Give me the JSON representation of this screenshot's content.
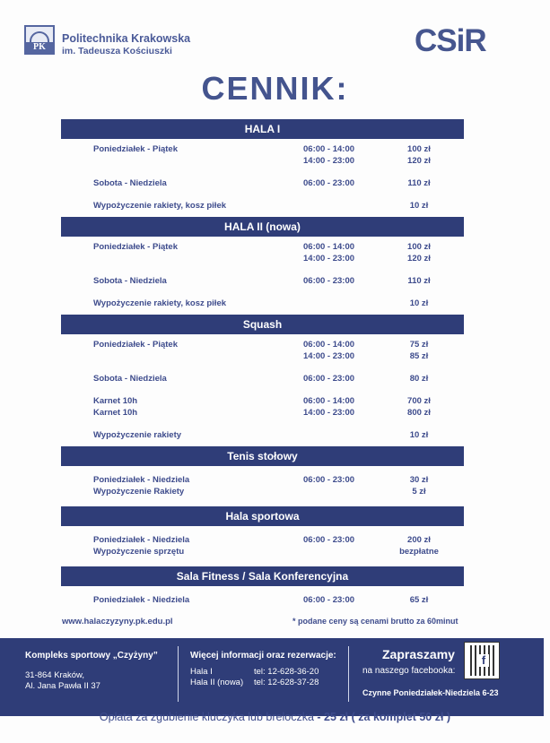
{
  "header": {
    "university_line1": "Politechnika Krakowska",
    "university_line2": "im. Tadeusza Kościuszki",
    "pk_logo_text": "PK",
    "csir_logo_text": "CSiR",
    "title": "CENNIK:"
  },
  "sections": [
    {
      "name": "HALA I",
      "groups": [
        [
          [
            "Poniedziałek - Piątek",
            "06:00 - 14:00",
            "100 zł"
          ],
          [
            "",
            "14:00 - 23:00",
            "120 zł"
          ]
        ],
        [
          [
            "Sobota - Niedziela",
            "06:00 - 23:00",
            "110 zł"
          ]
        ],
        [
          [
            "Wypożyczenie rakiety, kosz  piłek",
            "",
            "10 zł"
          ]
        ]
      ]
    },
    {
      "name": "HALA II (nowa)",
      "groups": [
        [
          [
            "Poniedziałek - Piątek",
            "06:00 - 14:00",
            "100 zł"
          ],
          [
            "",
            "14:00 - 23:00",
            "120 zł"
          ]
        ],
        [
          [
            "Sobota - Niedziela",
            "06:00 - 23:00",
            "110 zł"
          ]
        ],
        [
          [
            "Wypożyczenie rakiety, kosz  piłek",
            "",
            "10 zł"
          ]
        ]
      ]
    },
    {
      "name": "Squash",
      "groups": [
        [
          [
            "Poniedziałek - Piątek",
            "06:00 - 14:00",
            "75 zł"
          ],
          [
            "",
            "14:00 - 23:00",
            "85 zł"
          ]
        ],
        [
          [
            "Sobota - Niedziela",
            "06:00 - 23:00",
            "80 zł"
          ]
        ],
        [
          [
            "Karnet 10h",
            "06:00 - 14:00",
            "700 zł"
          ],
          [
            "Karnet 10h",
            "14:00 - 23:00",
            "800 zł"
          ]
        ],
        [
          [
            "Wypożyczenie rakiety",
            "",
            "10 zł"
          ]
        ]
      ]
    },
    {
      "name": "Tenis stołowy",
      "groups": [
        [
          [
            "Poniedziałek - Niedziela",
            "06:00 - 23:00",
            "30 zł"
          ],
          [
            "Wypożyczenie Rakiety",
            "",
            "5 zł"
          ]
        ]
      ]
    },
    {
      "name": "Hala sportowa",
      "groups": [
        [
          [
            "Poniedziałek - Niedziela",
            "06:00 - 23:00",
            "200 zł"
          ],
          [
            "Wypożyczenie sprzętu",
            "",
            "bezpłatne"
          ]
        ]
      ]
    },
    {
      "name": "Sala Fitness / Sala Konferencyjna",
      "groups": [
        [
          [
            "Poniedziałek - Niedziela",
            "06:00 - 23:00",
            "65 zł"
          ]
        ]
      ]
    }
  ],
  "footer": {
    "url": "www.halaczyzyny.pk.edu.pl",
    "note": "* podane ceny są cenami brutto za 60minut",
    "complex_title": "Kompleks sportowy „Czyżyny”",
    "address1": "31-864 Kraków,",
    "address2": "Al. Jana Pawła II 37",
    "info_title": "Więcej informacji oraz rezerwacje:",
    "hall1": "Hala I",
    "hall1_tel": "tel: 12-628-36-20",
    "hall2": "Hala II (nowa)",
    "hall2_tel": "tel: 12-628-37-28",
    "invite": "Zapraszamy",
    "invite_sub": "na naszego facebooka:",
    "hours": "Czynne Poniedziałek-Niedziela 6-23",
    "fee_text": "Opłata za zgubienie kluczyka lub breloczka",
    "fee_amount": "- 25 zł ( za komplet 50 zł )"
  },
  "colors": {
    "bar": "#2f3d78",
    "text": "#3d4b8c"
  }
}
